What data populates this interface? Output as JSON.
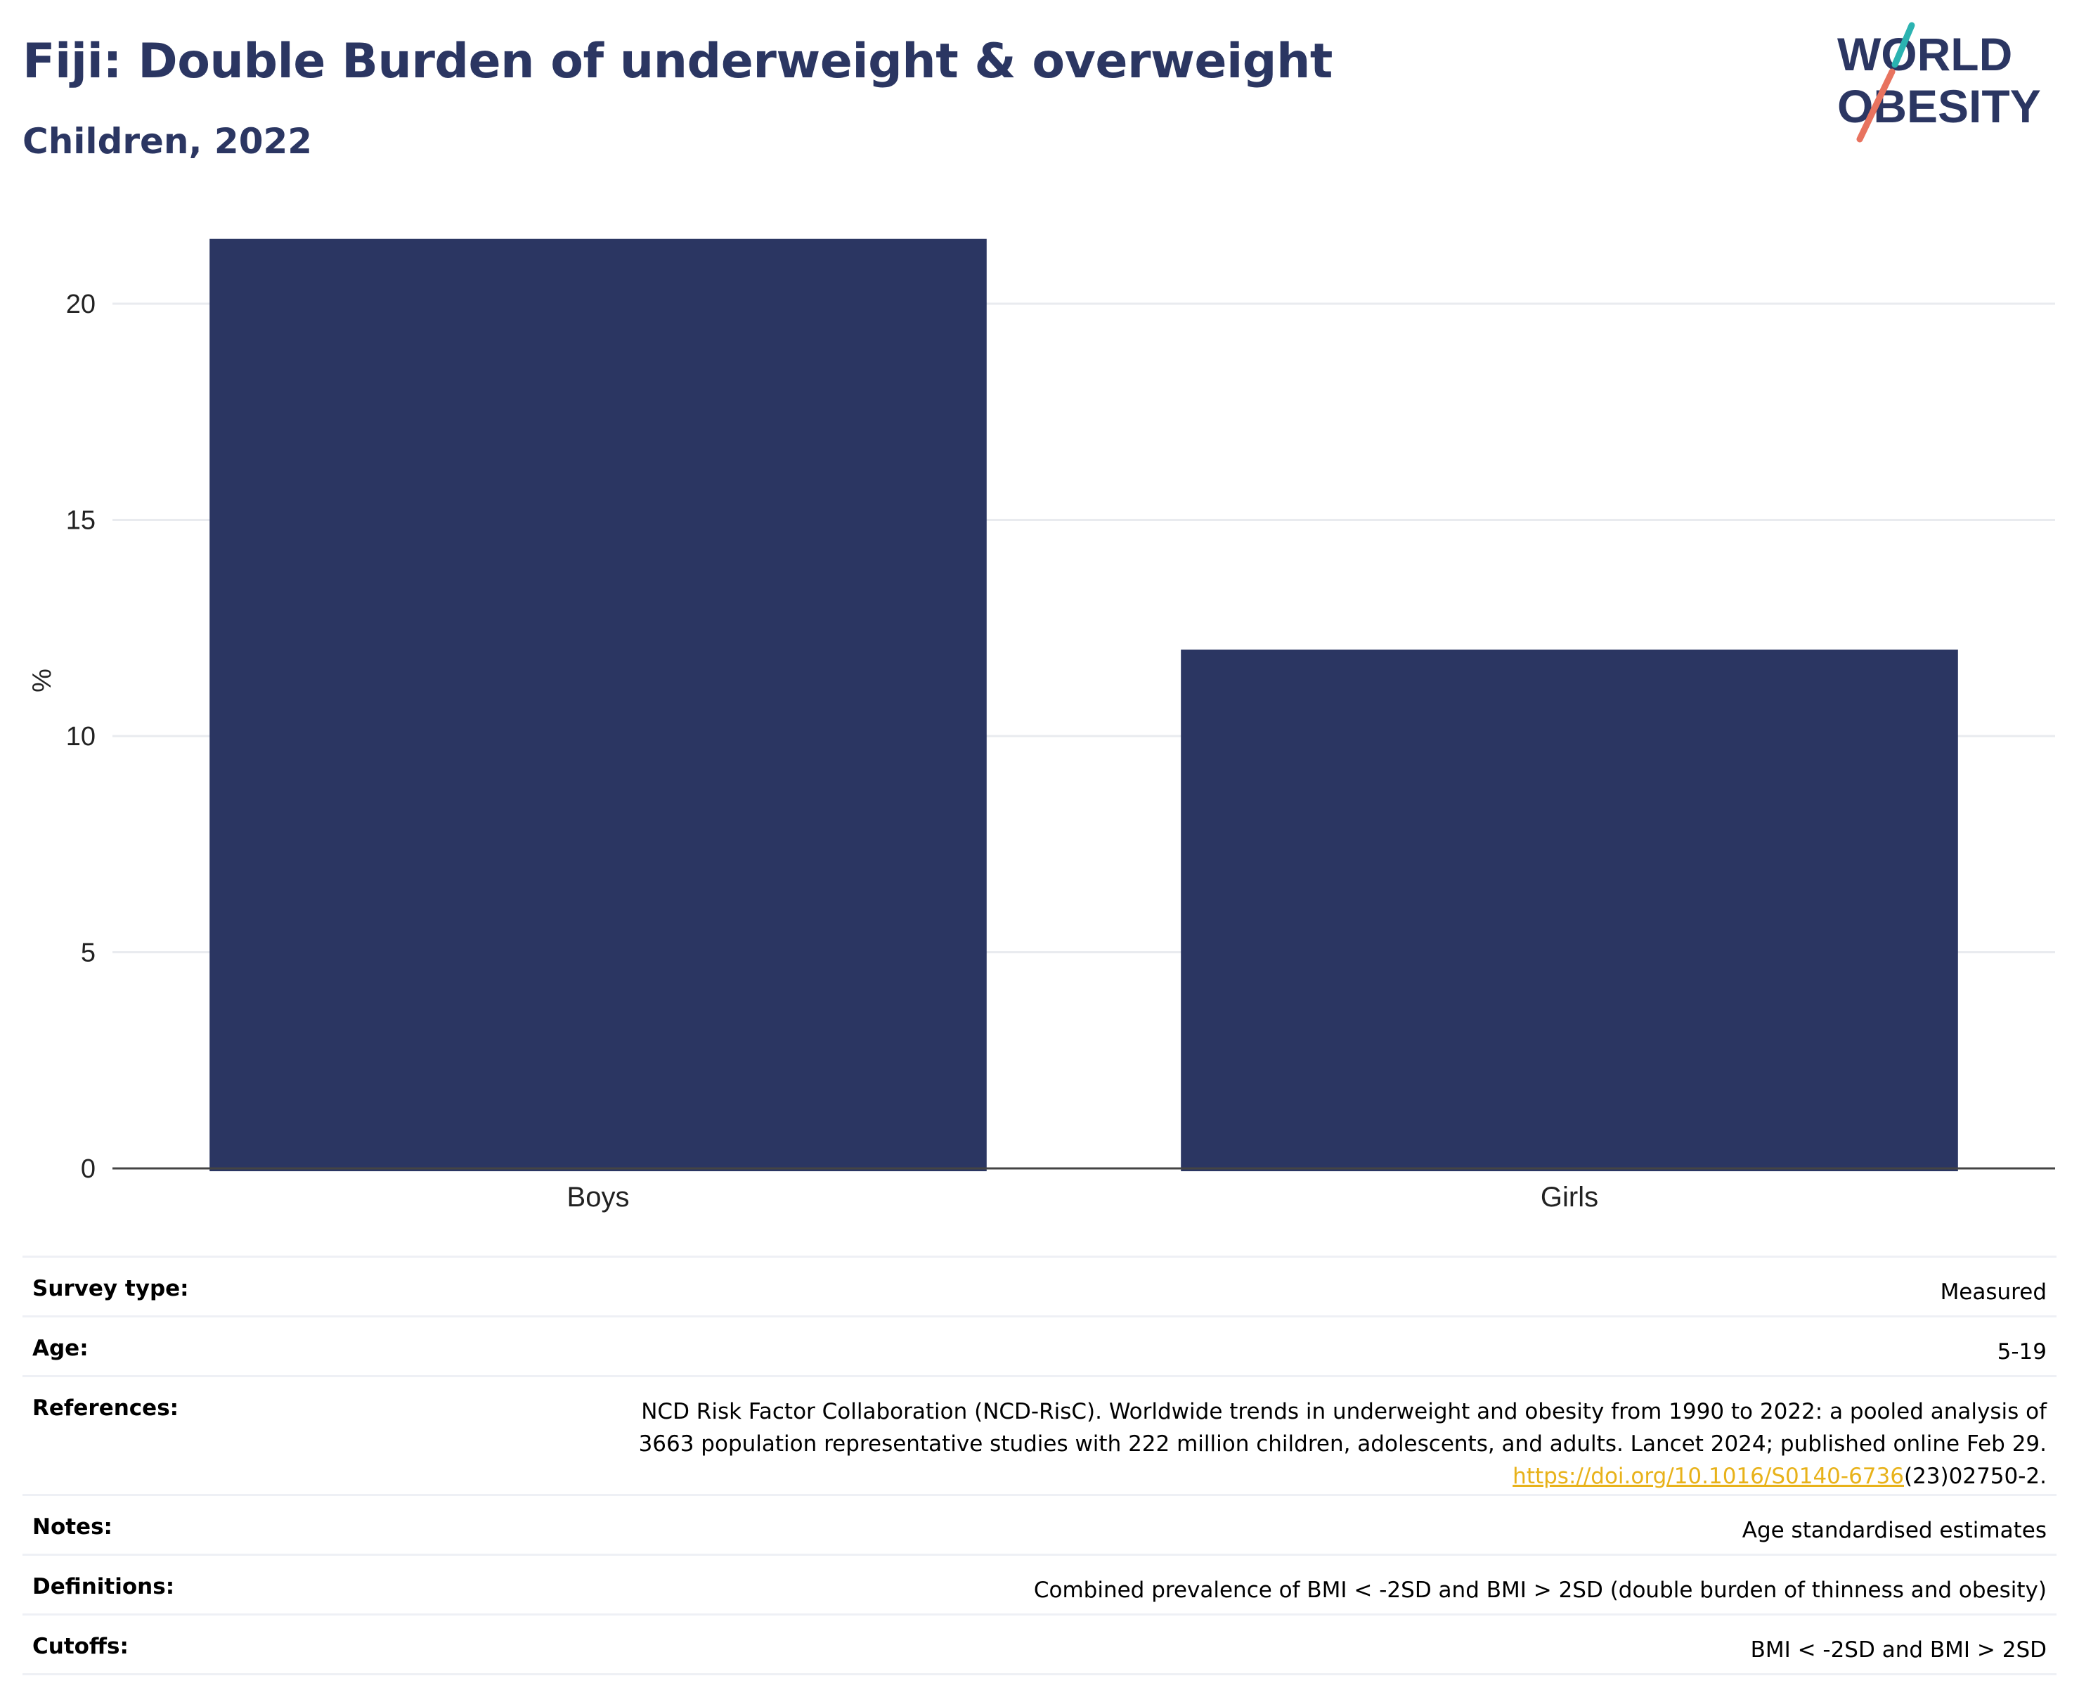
{
  "header": {
    "title": "Fiji: Double Burden of underweight & overweight",
    "subtitle": "Children, 2022",
    "logo_line1": "WORLD",
    "logo_line2": "OBESITY"
  },
  "colors": {
    "bar": "#2b3662",
    "title": "#2b3662",
    "grid": "#e9ebef",
    "axis": "#444444",
    "link": "#e8b21a",
    "logo_teal": "#2bb3b1",
    "logo_coral": "#e8735f"
  },
  "chart_data": {
    "type": "bar",
    "categories": [
      "Boys",
      "Girls"
    ],
    "values": [
      21.5,
      12.0
    ],
    "ylabel": "%",
    "xlabel": "",
    "ylim": [
      0,
      23
    ],
    "yticks": [
      0,
      5,
      10,
      15,
      20
    ],
    "grid": true
  },
  "info": {
    "survey_type": {
      "label": "Survey type:",
      "value": "Measured"
    },
    "age": {
      "label": "Age:",
      "value": "5-19"
    },
    "references": {
      "label": "References:",
      "line1": "NCD Risk Factor Collaboration (NCD-RisC). Worldwide trends in underweight and obesity from 1990 to 2022: a pooled analysis of",
      "line2": "3663 population representative studies with 222 million children, adolescents, and adults. Lancet 2024; published online Feb 29.",
      "link": "https://doi.org/10.1016/S0140-6736",
      "suffix": "(23)02750-2."
    },
    "notes": {
      "label": "Notes:",
      "value": "Age standardised estimates"
    },
    "definitions": {
      "label": "Definitions:",
      "value": "Combined prevalence of BMI < -2SD and BMI > 2SD (double burden of thinness and obesity)"
    },
    "cutoffs": {
      "label": "Cutoffs:",
      "value": "BMI < -2SD and BMI > 2SD"
    }
  }
}
